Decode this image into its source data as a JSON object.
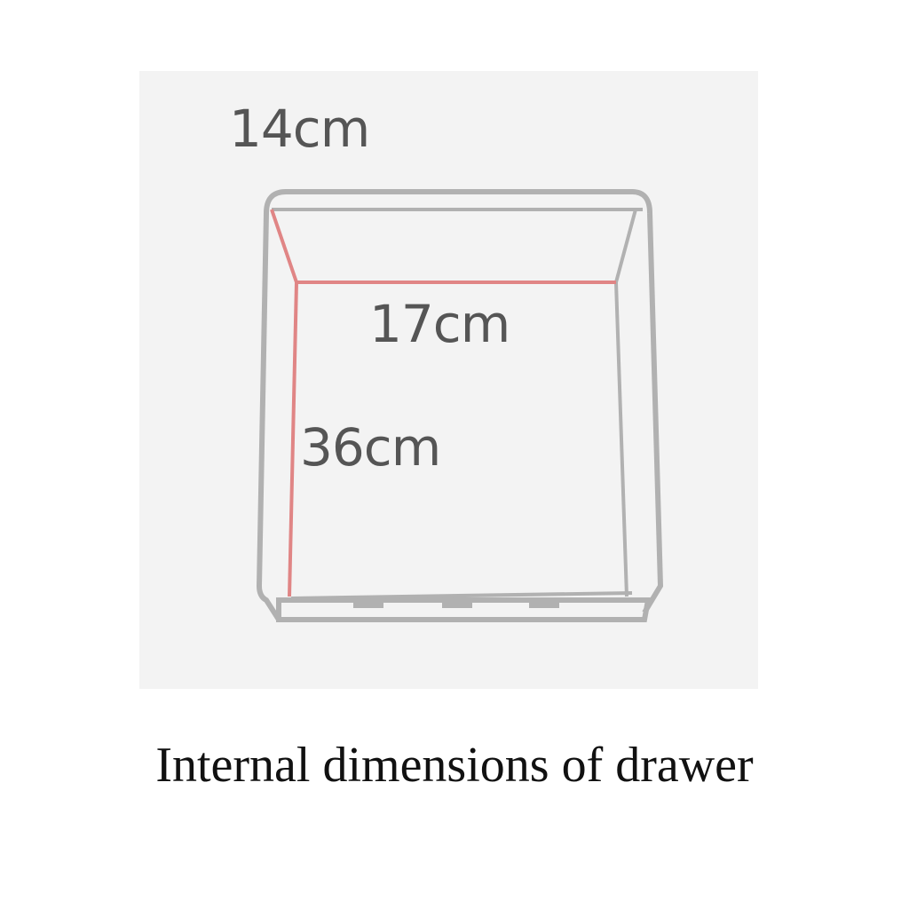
{
  "colors": {
    "page_background": "#ffffff",
    "panel_background": "#f3f3f3",
    "drawer_outline": "#b1b1b1",
    "drawer_fill": "#f8f8f8",
    "dimension_line": "#e08585",
    "label_text": "#555555",
    "caption_text": "#111111"
  },
  "dimensions": {
    "height": "14cm",
    "width": "17cm",
    "depth": "36cm"
  },
  "caption": "Internal dimensions of drawer"
}
